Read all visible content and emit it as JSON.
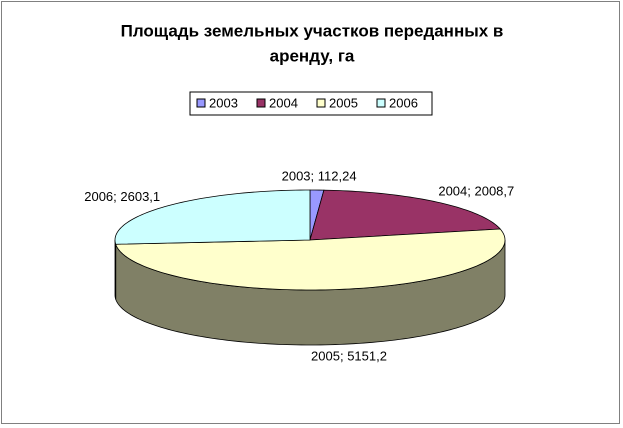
{
  "chart_data": {
    "type": "pie3d",
    "title": "Площадь земельных участков переданных в аренду, га",
    "series": [
      {
        "name": "2003",
        "color": "#9999ff",
        "value": 112.24,
        "value_label": "2003; 112,24"
      },
      {
        "name": "2004",
        "color": "#993366",
        "value": 2008.7,
        "value_label": "2004; 2008,7"
      },
      {
        "name": "2005",
        "color": "#ffffcc",
        "value": 5151.2,
        "value_label": "2005; 5151,2"
      },
      {
        "name": "2006",
        "color": "#ccffff",
        "value": 2603.1,
        "value_label": "2006; 2603,1"
      }
    ],
    "legend": "top"
  }
}
